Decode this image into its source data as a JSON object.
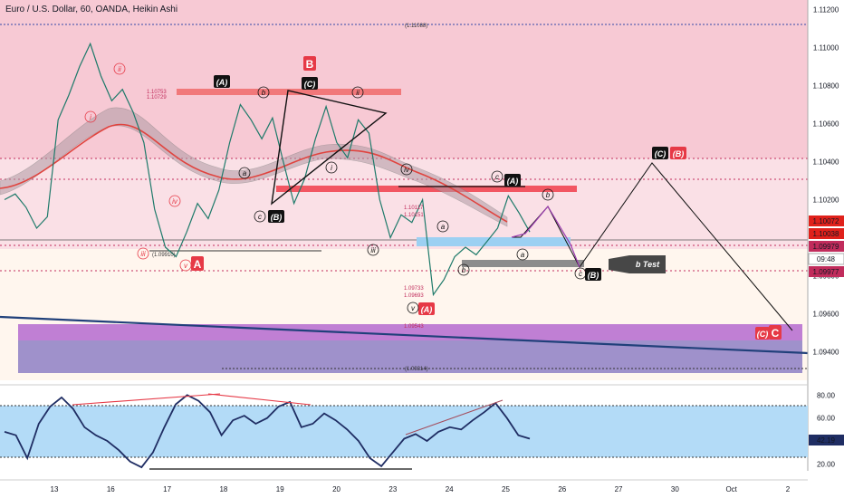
{
  "header": {
    "title": "Euro / U.S. Dollar, 60, OANDA, Heikin Ashi"
  },
  "price_badges": {
    "current": "1.10072",
    "high_marker": "1.10038",
    "level_a": "1.09979",
    "countdown": "09:48",
    "level_b": "1.09977"
  },
  "oscillator": {
    "value_badge": "42.19",
    "levels": [
      "80.00",
      "60.00",
      "20.00"
    ]
  },
  "annotations": {
    "top_level": "(1.11088)",
    "bottom_level": "(1.09314)",
    "low_level": "(1.09910)",
    "wave_b_box": "B",
    "wave_a_box": "A",
    "wave_c_box": "C",
    "labels": {
      "A": "(A)",
      "C": "(C)",
      "B_paren": "(B)",
      "b": "b",
      "a": "a",
      "c": "c",
      "ii": "ii",
      "i": "i",
      "iii": "iii",
      "iv": "iv",
      "v": "v",
      "C_label": "(C)",
      "B_label": "(B)"
    },
    "fib_levels_left": [
      "1.10753",
      "1.10729"
    ],
    "fib_levels_mid": [
      "1.10117",
      "1.10151"
    ],
    "fib_levels_low": [
      "1.09733",
      "1.09693",
      "1.09543"
    ],
    "b_test": "b Test"
  },
  "chart_data": {
    "type": "line",
    "title": "Euro / U.S. Dollar, 60, OANDA, Heikin Ashi",
    "xlabel": "",
    "ylabel": "",
    "x_tick_labels": [
      "13",
      "16",
      "17",
      "18",
      "19",
      "20",
      "23",
      "24",
      "25",
      "26",
      "27",
      "30",
      "Oct",
      "2"
    ],
    "y_tick_labels": [
      "1.11200",
      "1.11000",
      "1.10800",
      "1.10600",
      "1.10400",
      "1.10200",
      "1.09800",
      "1.09600",
      "1.09400"
    ],
    "ylim": [
      1.0925,
      1.1125
    ],
    "grid": false,
    "series": [
      {
        "values": [
          1.102,
          1.1023,
          1.1016,
          1.1005,
          1.1011,
          1.1062,
          1.1075,
          1.109,
          1.1102,
          1.1085,
          1.1072,
          1.1078,
          1.1066,
          1.105,
          1.1015,
          1.0995,
          1.099,
          1.1003,
          1.1018,
          1.101,
          1.1025,
          1.105,
          1.107,
          1.1062,
          1.1052,
          1.1063,
          1.104,
          1.1018,
          1.1031,
          1.1052,
          1.1069,
          1.105,
          1.1042,
          1.1062,
          1.1055,
          1.102,
          1.1,
          1.1012,
          1.1008,
          1.102,
          1.097,
          1.0978,
          1.099,
          1.0995,
          1.0991,
          1.0998,
          1.1005,
          1.1022,
          1.1013,
          1.1003
        ]
      }
    ],
    "oscillator_series": {
      "values": [
        48,
        45,
        25,
        55,
        70,
        78,
        68,
        52,
        45,
        40,
        32,
        22,
        17,
        30,
        52,
        72,
        80,
        75,
        65,
        45,
        58,
        62,
        55,
        60,
        70,
        74,
        52,
        55,
        64,
        58,
        50,
        40,
        25,
        18,
        30,
        42,
        46,
        40,
        48,
        52,
        50,
        58,
        65,
        73,
        60,
        45,
        42
      ]
    }
  }
}
